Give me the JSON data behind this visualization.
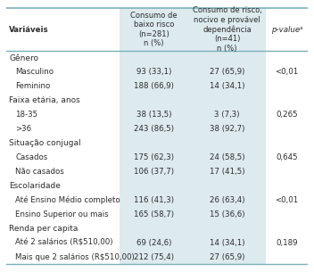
{
  "col_headers": [
    "Variáveis",
    "Consumo de\nbaixo risco\n(n=281)\nn (%)",
    "Consumo de risco,\nnocivo e provável\ndependência\n(n=41)\nn (%)",
    "p-valueᵃ"
  ],
  "sections": [
    {
      "category": "Gênero",
      "rows": [
        [
          "    Masculino",
          "93 (33,1)",
          "27 (65,9)",
          "<0,01"
        ],
        [
          "    Feminino",
          "188 (66,9)",
          "14 (34,1)",
          ""
        ]
      ]
    },
    {
      "category": "Faixa etária, anos",
      "rows": [
        [
          "    18-35",
          "38 (13,5)",
          "3 (7,3)",
          "0,265"
        ],
        [
          "    >36",
          "243 (86,5)",
          "38 (92,7)",
          ""
        ]
      ]
    },
    {
      "category": "Situação conjugal",
      "rows": [
        [
          "    Casados",
          "175 (62,3)",
          "24 (58,5)",
          "0,645"
        ],
        [
          "    Não casados",
          "106 (37,7)",
          "17 (41,5)",
          ""
        ]
      ]
    },
    {
      "category": "Escolaridade",
      "rows": [
        [
          "    Até Ensino Médio completo",
          "116 (41,3)",
          "26 (63,4)",
          "<0,01"
        ],
        [
          "    Ensino Superior ou mais",
          "165 (58,7)",
          "15 (36,6)",
          ""
        ]
      ]
    },
    {
      "category": "Renda per capita",
      "rows": [
        [
          "    Até 2 salários (R$510,00)",
          "69 (24,6)",
          "14 (34,1)",
          "0,189"
        ],
        [
          "    Mais que 2 salários (R$510,00)",
          "212 (75,4)",
          "27 (65,9)",
          ""
        ]
      ]
    }
  ],
  "bg_color": "#ffffff",
  "header_bg": "#cfe0e8",
  "col2_bg": "#ddeaee",
  "line_color": "#7ab0bb",
  "text_color": "#2c2c2c",
  "header_font_size": 6.2,
  "category_font_size": 6.5,
  "row_font_size": 6.2
}
